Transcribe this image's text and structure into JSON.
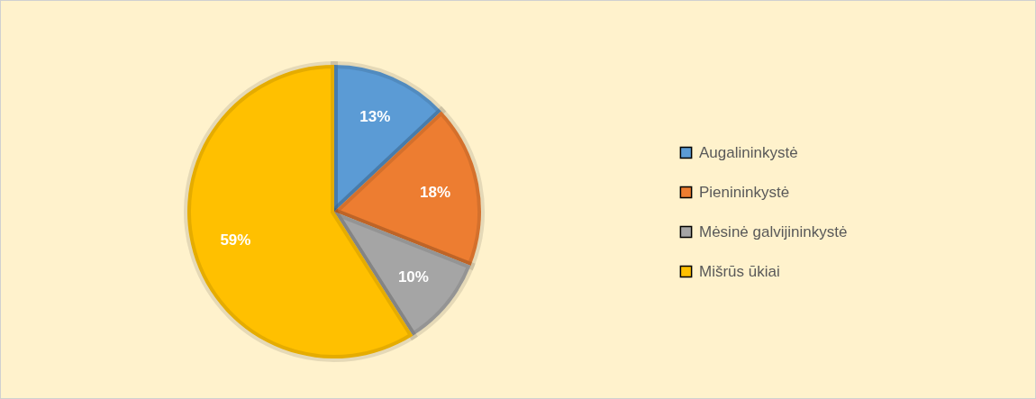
{
  "chart_data": {
    "type": "pie",
    "categories": [
      "Augalininkystė",
      "Pienininkystė",
      "Mėsinė galvijininkystė",
      "Mišrūs ūkiai"
    ],
    "values": [
      13,
      18,
      10,
      59
    ],
    "value_labels": [
      "13%",
      "18%",
      "10%",
      "59%"
    ],
    "colors": [
      "#5b9bd5",
      "#ed7d31",
      "#a5a5a5",
      "#ffc000"
    ],
    "legend": "right"
  }
}
